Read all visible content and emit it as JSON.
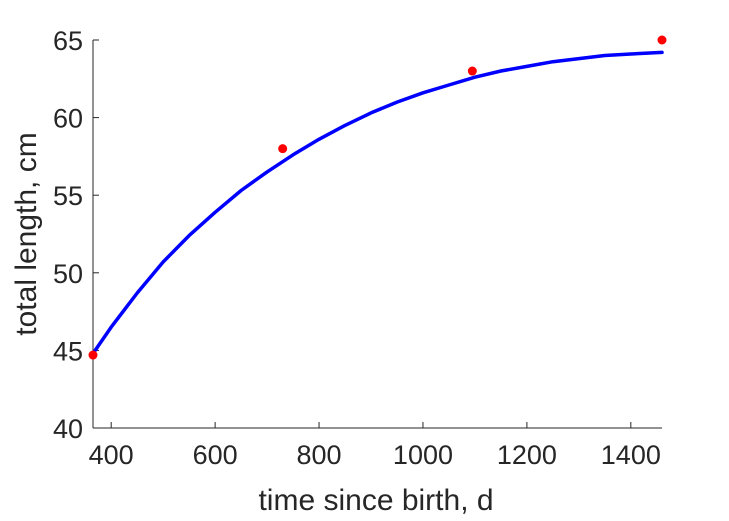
{
  "chart_data": {
    "type": "line",
    "title": "",
    "xlabel": "time since birth, d",
    "ylabel": "total length, cm",
    "xlim": [
      365,
      1460
    ],
    "ylim": [
      40,
      65
    ],
    "xticks": [
      400,
      600,
      800,
      1000,
      1200,
      1400
    ],
    "yticks": [
      40,
      45,
      50,
      55,
      60,
      65
    ],
    "grid": false,
    "series": [
      {
        "kind": "scatter",
        "color": "#ff0000",
        "x": [
          365,
          730,
          1095,
          1460
        ],
        "y": [
          44.7,
          58.0,
          63.0,
          65.0
        ]
      },
      {
        "kind": "line",
        "color": "#0000ff",
        "x": [
          365,
          400,
          450,
          500,
          550,
          600,
          650,
          700,
          750,
          800,
          850,
          900,
          950,
          1000,
          1050,
          1100,
          1150,
          1200,
          1250,
          1300,
          1350,
          1400,
          1460
        ],
        "y": [
          44.8,
          46.5,
          48.7,
          50.7,
          52.4,
          53.9,
          55.3,
          56.5,
          57.6,
          58.6,
          59.5,
          60.3,
          61.0,
          61.6,
          62.1,
          62.6,
          63.0,
          63.3,
          63.6,
          63.8,
          64.0,
          64.1,
          64.2
        ]
      }
    ]
  }
}
